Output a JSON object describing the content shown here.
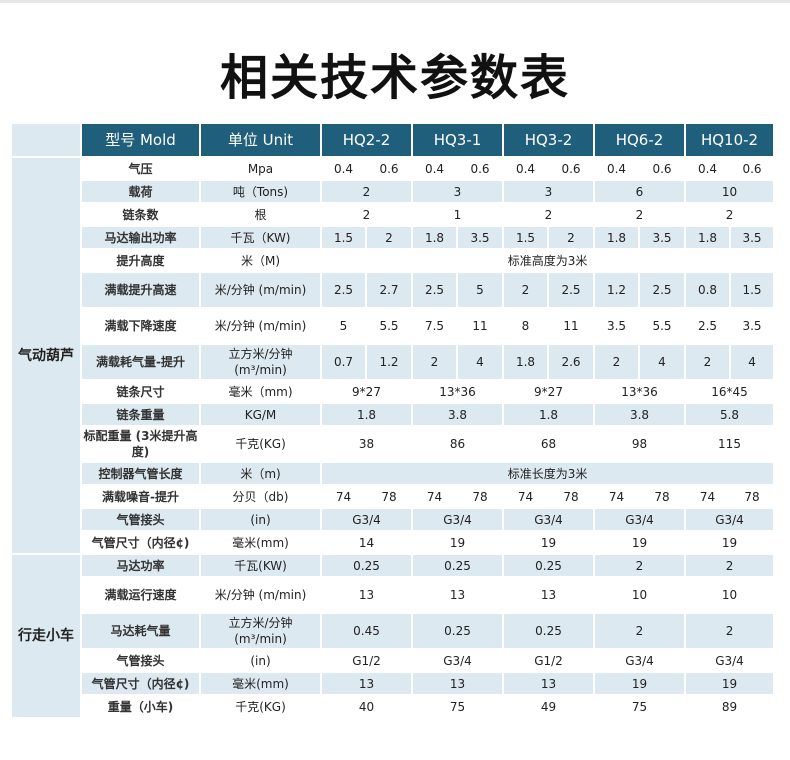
{
  "title": "相关技术参数表",
  "header": {
    "model_label": "型号 Mold",
    "unit_label": "单位 Unit",
    "models": [
      "HQ2-2",
      "HQ3-1",
      "HQ3-2",
      "HQ6-2",
      "HQ10-2"
    ]
  },
  "colors": {
    "header": "#1f5f7b",
    "stripe": "#dde9f0"
  },
  "groups": [
    {
      "name": "气动葫芦",
      "rows": [
        {
          "label": "气压",
          "unit": "Mpa",
          "values": [
            "0.4",
            "0.6",
            "0.4",
            "0.6",
            "0.4",
            "0.6",
            "0.4",
            "0.6",
            "0.4",
            "0.6"
          ]
        },
        {
          "label": "载荷",
          "unit": "吨（Tons)",
          "values": [
            "2",
            "3",
            "3",
            "6",
            "10"
          ]
        },
        {
          "label": "链条数",
          "unit": "根",
          "values": [
            "2",
            "1",
            "2",
            "2",
            "2"
          ]
        },
        {
          "label": "马达输出功率",
          "unit": "千瓦（KW)",
          "values": [
            "1.5",
            "2",
            "1.8",
            "3.5",
            "1.5",
            "2",
            "1.8",
            "3.5",
            "1.8",
            "3.5"
          ]
        },
        {
          "label": "提升高度",
          "unit": "米（M)",
          "values": [
            "标准高度为3米"
          ]
        },
        {
          "label": "满载提升高速",
          "unit": "米/分钟 (m/min)",
          "values": [
            "2.5",
            "2.7",
            "2.5",
            "5",
            "2",
            "2.5",
            "1.2",
            "2.5",
            "0.8",
            "1.5"
          ]
        },
        {
          "label": "满载下降速度",
          "unit": "米/分钟 (m/min)",
          "values": [
            "5",
            "5.5",
            "7.5",
            "11",
            "8",
            "11",
            "3.5",
            "5.5",
            "2.5",
            "3.5"
          ]
        },
        {
          "label": "满载耗气量-提升",
          "unit": "立方米/分钟 (m³/min)",
          "values": [
            "0.7",
            "1.2",
            "2",
            "4",
            "1.8",
            "2.6",
            "2",
            "4",
            "2",
            "4"
          ]
        },
        {
          "label": "链条尺寸",
          "unit": "毫米（mm)",
          "values": [
            "9*27",
            "13*36",
            "9*27",
            "13*36",
            "16*45"
          ]
        },
        {
          "label": "链条重量",
          "unit": "KG/M",
          "values": [
            "1.8",
            "3.8",
            "1.8",
            "3.8",
            "5.8"
          ]
        },
        {
          "label": "标配重量 (3米提升高度)",
          "unit": "千克(KG)",
          "values": [
            "38",
            "86",
            "68",
            "98",
            "115"
          ]
        },
        {
          "label": "控制器气管长度",
          "unit": "米（m)",
          "values": [
            "标准长度为3米"
          ]
        },
        {
          "label": "满载噪音-提升",
          "unit": "分贝（db)",
          "values": [
            "74",
            "78",
            "74",
            "78",
            "74",
            "78",
            "74",
            "78",
            "74",
            "78"
          ]
        },
        {
          "label": "气管接头",
          "unit": "(in)",
          "values": [
            "G3/4",
            "G3/4",
            "G3/4",
            "G3/4",
            "G3/4"
          ]
        },
        {
          "label": "气管尺寸（内径¢)",
          "unit": "毫米(mm)",
          "values": [
            "14",
            "19",
            "19",
            "19",
            "19"
          ]
        }
      ]
    },
    {
      "name": "行走小车",
      "rows": [
        {
          "label": "马达功率",
          "unit": "千瓦(KW)",
          "values": [
            "0.25",
            "0.25",
            "0.25",
            "2",
            "2"
          ]
        },
        {
          "label": "满载运行速度",
          "unit": "米/分钟 (m/min)",
          "values": [
            "13",
            "13",
            "13",
            "10",
            "10"
          ]
        },
        {
          "label": "马达耗气量",
          "unit": "立方米/分钟 (m³/min)",
          "values": [
            "0.45",
            "0.25",
            "0.25",
            "2",
            "2"
          ]
        },
        {
          "label": "气管接头",
          "unit": "(in)",
          "values": [
            "G1/2",
            "G3/4",
            "G1/2",
            "G3/4",
            "G3/4"
          ]
        },
        {
          "label": "气管尺寸（内径¢)",
          "unit": "毫米(mm)",
          "values": [
            "13",
            "13",
            "13",
            "19",
            "19"
          ]
        },
        {
          "label": "重量（小车)",
          "unit": "千克(KG)",
          "values": [
            "40",
            "75",
            "49",
            "75",
            "89"
          ]
        }
      ]
    }
  ]
}
